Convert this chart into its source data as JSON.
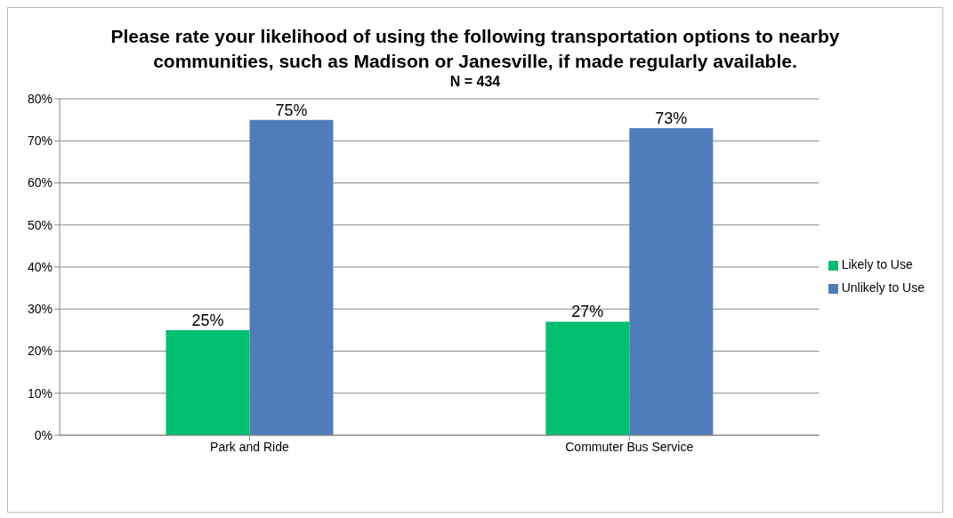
{
  "chart_data": {
    "type": "bar",
    "title": "Please rate your likelihood of using the following transportation options to nearby communities, such as Madison or Janesville, if made regularly available.",
    "subtitle": "N = 434",
    "categories": [
      "Park and Ride",
      "Commuter Bus Service"
    ],
    "series": [
      {
        "name": "Likely to Use",
        "color": "#00bf6f",
        "values": [
          25,
          27
        ],
        "value_labels": [
          "25%",
          "27%"
        ]
      },
      {
        "name": "Unlikely to Use",
        "color": "#4f7dba",
        "values": [
          75,
          73
        ],
        "value_labels": [
          "75%",
          "73%"
        ]
      }
    ],
    "ylim": [
      0,
      80
    ],
    "yticks": [
      {
        "value": 0,
        "label": "0%"
      },
      {
        "value": 10,
        "label": "10%"
      },
      {
        "value": 20,
        "label": "20%"
      },
      {
        "value": 30,
        "label": "30%"
      },
      {
        "value": 40,
        "label": "40%"
      },
      {
        "value": 50,
        "label": "50%"
      },
      {
        "value": 60,
        "label": "60%"
      },
      {
        "value": 70,
        "label": "70%"
      },
      {
        "value": 80,
        "label": "80%"
      }
    ],
    "grid": "y",
    "legend": "right"
  }
}
